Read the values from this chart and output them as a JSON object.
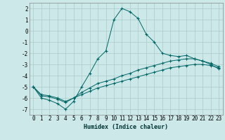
{
  "xlabel": "Humidex (Indice chaleur)",
  "background_color": "#cce8e8",
  "grid_color": "#aacccc",
  "line_color": "#006666",
  "xlim": [
    -0.5,
    23.5
  ],
  "ylim": [
    -7.5,
    2.5
  ],
  "xticks": [
    0,
    1,
    2,
    3,
    4,
    5,
    6,
    7,
    8,
    9,
    10,
    11,
    12,
    13,
    14,
    15,
    16,
    17,
    18,
    19,
    20,
    21,
    22,
    23
  ],
  "yticks": [
    -7,
    -6,
    -5,
    -4,
    -3,
    -2,
    -1,
    0,
    1,
    2
  ],
  "lines": [
    {
      "x": [
        0,
        1,
        2,
        3,
        4,
        5,
        6,
        7,
        8,
        9,
        10,
        11,
        12,
        13,
        14,
        15,
        16,
        17,
        18,
        19,
        20,
        21,
        22,
        23
      ],
      "y": [
        -5.0,
        -6.0,
        -6.2,
        -6.5,
        -7.0,
        -6.3,
        -5.0,
        -3.8,
        -2.5,
        -1.8,
        1.0,
        2.0,
        1.7,
        1.1,
        -0.3,
        -1.0,
        -2.0,
        -2.2,
        -2.3,
        -2.2,
        -2.5,
        -2.7,
        -3.0,
        -3.4
      ]
    },
    {
      "x": [
        0,
        1,
        2,
        3,
        4,
        5,
        6,
        7,
        8,
        9,
        10,
        11,
        12,
        13,
        14,
        15,
        16,
        17,
        18,
        19,
        20,
        21,
        22,
        23
      ],
      "y": [
        -5.0,
        -5.8,
        -5.9,
        -6.1,
        -6.4,
        -6.0,
        -5.5,
        -5.1,
        -4.7,
        -4.5,
        -4.3,
        -4.0,
        -3.8,
        -3.5,
        -3.3,
        -3.1,
        -2.9,
        -2.7,
        -2.6,
        -2.5,
        -2.5,
        -2.7,
        -2.9,
        -3.2
      ]
    },
    {
      "x": [
        0,
        1,
        2,
        3,
        4,
        5,
        6,
        7,
        8,
        9,
        10,
        11,
        12,
        13,
        14,
        15,
        16,
        17,
        18,
        19,
        20,
        21,
        22,
        23
      ],
      "y": [
        -5.0,
        -5.7,
        -5.8,
        -6.0,
        -6.3,
        -6.0,
        -5.7,
        -5.4,
        -5.1,
        -4.9,
        -4.7,
        -4.5,
        -4.3,
        -4.1,
        -3.9,
        -3.7,
        -3.5,
        -3.3,
        -3.2,
        -3.1,
        -3.0,
        -3.0,
        -3.1,
        -3.3
      ]
    }
  ]
}
